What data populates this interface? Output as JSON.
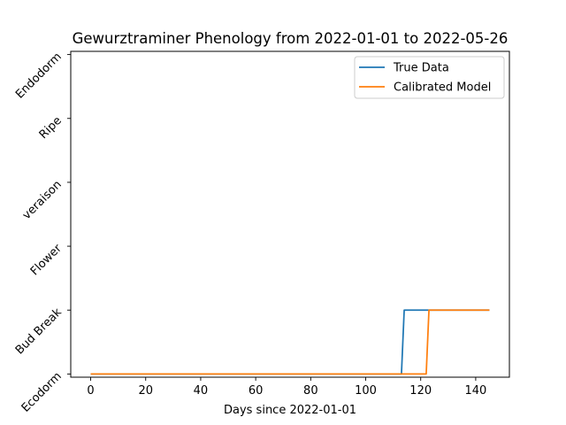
{
  "chart_data": {
    "type": "line",
    "title": "Gewurztraminer Phenology from 2022-01-01 to 2022-05-26",
    "xlabel": "Days since 2022-01-01",
    "ylabel": "",
    "xlim": [
      -7.25,
      152.25
    ],
    "ylim": [
      -0.05,
      5.05
    ],
    "x_ticks": [
      0,
      20,
      40,
      60,
      80,
      100,
      120,
      140
    ],
    "y_categories": [
      "Ecodorm",
      "Bud Break",
      "Flower",
      "veraison",
      "Ripe",
      "Endodorm"
    ],
    "grid": false,
    "legend_position": "top-right",
    "series": [
      {
        "name": "True Data",
        "color": "#1f77b4",
        "x": [
          0,
          113,
          114,
          145
        ],
        "y": [
          0,
          0,
          1,
          1
        ]
      },
      {
        "name": "Calibrated Model",
        "color": "#ff7f0e",
        "x": [
          0,
          122,
          123,
          145
        ],
        "y": [
          0,
          0,
          1,
          1
        ]
      }
    ]
  }
}
